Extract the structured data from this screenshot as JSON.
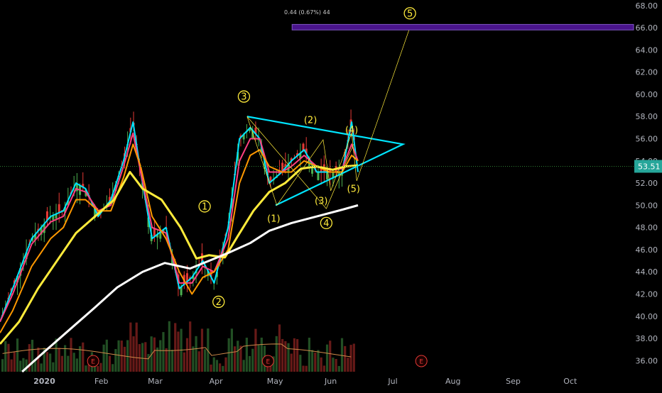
{
  "chart_data": {
    "type": "line",
    "ylim": [
      35,
      68.5
    ],
    "y_ticks": [
      "68.00",
      "66.00",
      "64.00",
      "62.00",
      "60.00",
      "58.00",
      "56.00",
      "54.00",
      "52.00",
      "50.00",
      "48.00",
      "46.00",
      "44.00",
      "42.00",
      "40.00",
      "38.00",
      "36.00"
    ],
    "x_ticks": [
      "2020",
      "Feb",
      "Mar",
      "Apr",
      "May",
      "Jun",
      "Jul",
      "Aug",
      "Sep",
      "Oct"
    ],
    "price_label": "53.51",
    "price": 53.51,
    "top_caption": "0.44 (0.67%) 44",
    "earnings_marker": "E",
    "earnings_at": [
      "Feb",
      "Apr-mid",
      "Jun-end"
    ],
    "target_zone": [
      65.8,
      66.3
    ],
    "grid": false,
    "wave_labels": [
      {
        "text": "3",
        "circled": true,
        "t": 0.385,
        "y": 59.8
      },
      {
        "text": "(2)",
        "circled": false,
        "t": 0.49,
        "y": 57.7
      },
      {
        "text": "(4)",
        "circled": false,
        "t": 0.555,
        "y": 56.8
      },
      {
        "text": "5",
        "circled": true,
        "t": 0.647,
        "y": 67.3
      },
      {
        "text": "1",
        "circled": true,
        "t": 0.323,
        "y": 49.9
      },
      {
        "text": "2",
        "circled": true,
        "t": 0.345,
        "y": 41.3
      },
      {
        "text": "(1)",
        "circled": false,
        "t": 0.432,
        "y": 48.8
      },
      {
        "text": "(3)",
        "circled": false,
        "t": 0.507,
        "y": 50.4
      },
      {
        "text": "4",
        "circled": true,
        "t": 0.515,
        "y": 48.4
      },
      {
        "text": "(5)",
        "circled": false,
        "t": 0.558,
        "y": 51.5
      }
    ],
    "series": [
      {
        "color": "#00e5ff",
        "points": [
          [
            0,
            39.5
          ],
          [
            0.02,
            42.5
          ],
          [
            0.05,
            47
          ],
          [
            0.08,
            49
          ],
          [
            0.1,
            49.5
          ],
          [
            0.12,
            52
          ],
          [
            0.135,
            51.5
          ],
          [
            0.155,
            49
          ],
          [
            0.175,
            50.5
          ],
          [
            0.195,
            54
          ],
          [
            0.21,
            57.5
          ],
          [
            0.222,
            53
          ],
          [
            0.24,
            47
          ],
          [
            0.262,
            48
          ],
          [
            0.283,
            42.5
          ],
          [
            0.303,
            43.5
          ],
          [
            0.32,
            45
          ],
          [
            0.338,
            43
          ],
          [
            0.36,
            48
          ],
          [
            0.378,
            56
          ],
          [
            0.395,
            57
          ],
          [
            0.41,
            56
          ],
          [
            0.425,
            52
          ],
          [
            0.445,
            53
          ],
          [
            0.46,
            54
          ],
          [
            0.48,
            55
          ],
          [
            0.5,
            53
          ],
          [
            0.52,
            53
          ],
          [
            0.54,
            53
          ],
          [
            0.555,
            57.5
          ],
          [
            0.565,
            53
          ]
        ]
      },
      {
        "color": "#ff4081",
        "points": [
          [
            0,
            39.5
          ],
          [
            0.02,
            42
          ],
          [
            0.05,
            46.5
          ],
          [
            0.08,
            48.5
          ],
          [
            0.1,
            49
          ],
          [
            0.12,
            51.5
          ],
          [
            0.135,
            51.2
          ],
          [
            0.155,
            49.5
          ],
          [
            0.175,
            50
          ],
          [
            0.195,
            53.5
          ],
          [
            0.21,
            56.5
          ],
          [
            0.222,
            53
          ],
          [
            0.24,
            48
          ],
          [
            0.262,
            47.5
          ],
          [
            0.283,
            43
          ],
          [
            0.303,
            43
          ],
          [
            0.32,
            44.5
          ],
          [
            0.338,
            44
          ],
          [
            0.36,
            47
          ],
          [
            0.378,
            54
          ],
          [
            0.395,
            56
          ],
          [
            0.41,
            56
          ],
          [
            0.425,
            53
          ],
          [
            0.445,
            53
          ],
          [
            0.46,
            53.5
          ],
          [
            0.48,
            54.5
          ],
          [
            0.5,
            53.5
          ],
          [
            0.52,
            53.2
          ],
          [
            0.54,
            53.3
          ],
          [
            0.555,
            55.5
          ],
          [
            0.565,
            54
          ]
        ]
      },
      {
        "color": "#ff9800",
        "points": [
          [
            0,
            38.5
          ],
          [
            0.02,
            40.5
          ],
          [
            0.05,
            44.5
          ],
          [
            0.08,
            47
          ],
          [
            0.1,
            48
          ],
          [
            0.12,
            50.5
          ],
          [
            0.135,
            50.5
          ],
          [
            0.155,
            49.5
          ],
          [
            0.175,
            49.5
          ],
          [
            0.195,
            52.5
          ],
          [
            0.21,
            55.5
          ],
          [
            0.222,
            53.5
          ],
          [
            0.24,
            49
          ],
          [
            0.262,
            47
          ],
          [
            0.283,
            44
          ],
          [
            0.303,
            42
          ],
          [
            0.32,
            43.5
          ],
          [
            0.338,
            44
          ],
          [
            0.36,
            46
          ],
          [
            0.378,
            52
          ],
          [
            0.395,
            54.5
          ],
          [
            0.41,
            55
          ],
          [
            0.425,
            53.5
          ],
          [
            0.445,
            53
          ],
          [
            0.46,
            53
          ],
          [
            0.48,
            54
          ],
          [
            0.5,
            53.5
          ],
          [
            0.52,
            53
          ],
          [
            0.54,
            53
          ],
          [
            0.555,
            54.5
          ],
          [
            0.565,
            54
          ]
        ]
      },
      {
        "color": "#ffeb3b",
        "points": [
          [
            0,
            37.5
          ],
          [
            0.03,
            39.5
          ],
          [
            0.06,
            42.5
          ],
          [
            0.09,
            45
          ],
          [
            0.12,
            47.5
          ],
          [
            0.15,
            49
          ],
          [
            0.18,
            50.5
          ],
          [
            0.205,
            53
          ],
          [
            0.225,
            51.5
          ],
          [
            0.255,
            50.5
          ],
          [
            0.285,
            48
          ],
          [
            0.31,
            45.2
          ],
          [
            0.33,
            45.5
          ],
          [
            0.355,
            45.3
          ],
          [
            0.375,
            47.2
          ],
          [
            0.4,
            49.5
          ],
          [
            0.425,
            51.2
          ],
          [
            0.45,
            52
          ],
          [
            0.475,
            53.3
          ],
          [
            0.5,
            53.5
          ],
          [
            0.525,
            53.2
          ],
          [
            0.545,
            53.5
          ],
          [
            0.565,
            53.6
          ]
        ]
      },
      {
        "color": "#ffffff",
        "points": [
          [
            0.035,
            35
          ],
          [
            0.07,
            36.8
          ],
          [
            0.11,
            38.8
          ],
          [
            0.15,
            40.8
          ],
          [
            0.185,
            42.6
          ],
          [
            0.225,
            44
          ],
          [
            0.26,
            44.8
          ],
          [
            0.3,
            44.3
          ],
          [
            0.33,
            45
          ],
          [
            0.36,
            45.7
          ],
          [
            0.395,
            46.6
          ],
          [
            0.425,
            47.7
          ],
          [
            0.46,
            48.4
          ],
          [
            0.5,
            49
          ],
          [
            0.54,
            49.6
          ],
          [
            0.565,
            50
          ]
        ]
      }
    ],
    "lines": [
      {
        "color": "#00e5ff",
        "width": 2.2,
        "points": [
          [
            0.39,
            58
          ],
          [
            0.636,
            55.5
          ],
          [
            0.435,
            50
          ]
        ]
      },
      {
        "color": "#ffeb3b",
        "width": 0.7,
        "points": [
          [
            0.39,
            58
          ],
          [
            0.437,
            50
          ],
          [
            0.51,
            55.9
          ],
          [
            0.522,
            51.3
          ],
          [
            0.555,
            56.5
          ],
          [
            0.563,
            52.2
          ],
          [
            0.648,
            66.2
          ]
        ]
      },
      {
        "color": "#ffeb3b",
        "width": 0.7,
        "points": [
          [
            0.39,
            58
          ],
          [
            0.515,
            49.7
          ],
          [
            0.558,
            55.5
          ]
        ]
      }
    ]
  }
}
